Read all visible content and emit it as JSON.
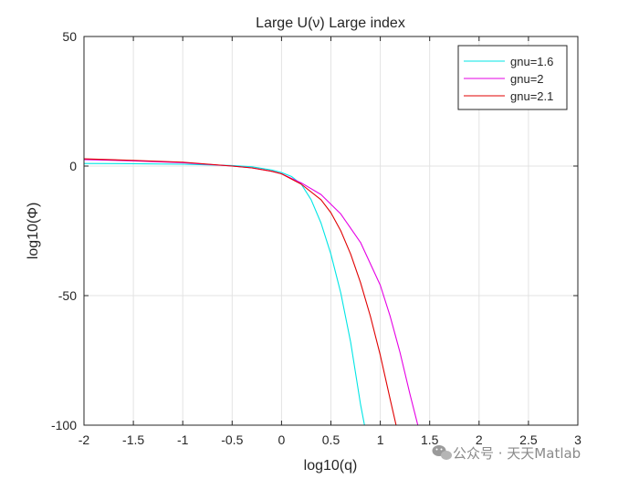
{
  "watermark": {
    "text": "公众号 · 天天Matlab",
    "icon": "wechat-icon",
    "color": "#8a8a8a"
  },
  "chart_data": {
    "type": "line",
    "title": "Large U(ν) Large index",
    "xlabel": "log10(q)",
    "ylabel": "log10(Φ)",
    "xlim": [
      -2,
      3
    ],
    "ylim": [
      -100,
      50
    ],
    "xticks": [
      -2,
      -1.5,
      -1,
      -0.5,
      0,
      0.5,
      1,
      1.5,
      2,
      2.5,
      3
    ],
    "xtick_labels": [
      "-2",
      "-1.5",
      "-1",
      "-0.5",
      "0",
      "0.5",
      "1",
      "1.5",
      "2",
      "2.5",
      "3"
    ],
    "yticks": [
      -100,
      -50,
      0,
      50
    ],
    "ytick_labels": [
      "-100",
      "-50",
      "0",
      "50"
    ],
    "grid": true,
    "legend_position": "top-right",
    "series": [
      {
        "name": "gnu=1.6",
        "color": "#00e5e5",
        "x": [
          -2,
          -1.5,
          -1,
          -0.5,
          -0.3,
          -0.1,
          0,
          0.1,
          0.2,
          0.3,
          0.4,
          0.5,
          0.6,
          0.7,
          0.75,
          0.8,
          0.84
        ],
        "y": [
          1,
          0.9,
          0.7,
          0.2,
          -0.3,
          -1.5,
          -2.5,
          -4,
          -7,
          -13,
          -22,
          -34,
          -49,
          -68,
          -80,
          -92,
          -100
        ]
      },
      {
        "name": "gnu=2",
        "color": "#e500e5",
        "x": [
          -2,
          -1.5,
          -1,
          -0.5,
          -0.3,
          -0.1,
          0,
          0.2,
          0.4,
          0.6,
          0.8,
          1.0,
          1.1,
          1.2,
          1.3,
          1.38
        ],
        "y": [
          2.5,
          2,
          1.3,
          0,
          -0.7,
          -2,
          -3,
          -6.5,
          -11,
          -18.5,
          -29.5,
          -46,
          -58,
          -72,
          -88,
          -100
        ]
      },
      {
        "name": "gnu=2.1",
        "color": "#e00000",
        "x": [
          -2,
          -1.5,
          -1,
          -0.5,
          -0.3,
          -0.1,
          0,
          0.2,
          0.4,
          0.5,
          0.6,
          0.7,
          0.8,
          0.9,
          1.0,
          1.1,
          1.16
        ],
        "y": [
          2.8,
          2.2,
          1.5,
          0,
          -0.7,
          -2,
          -3,
          -7,
          -13,
          -18,
          -25,
          -34,
          -45,
          -58,
          -73,
          -90,
          -100
        ]
      }
    ]
  }
}
